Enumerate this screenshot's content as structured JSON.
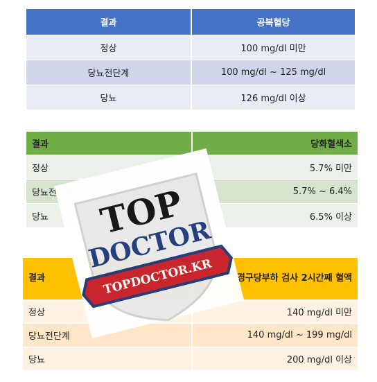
{
  "tables": [
    {
      "header": [
        "결과",
        "공복혈당"
      ],
      "rows": [
        [
          "정상",
          "100 mg/dl 미만"
        ],
        [
          "당뇨전단계",
          "100 mg/dl ~ 125 mg/dl"
        ],
        [
          "당뇨",
          "126 mg/dl 이상"
        ]
      ]
    },
    {
      "header": [
        "결과",
        "당화혈색소"
      ],
      "rows": [
        [
          "정상",
          "5.7% 미만"
        ],
        [
          "당뇨전단계",
          "5.7% ~ 6.4%"
        ],
        [
          "당뇨",
          "6.5% 이상"
        ]
      ]
    },
    {
      "header": [
        "결과",
        "경구당부하 검사 2시간째 혈액"
      ],
      "rows": [
        [
          "정상",
          "140 mg/dl 미만"
        ],
        [
          "당뇨전단계",
          "140 mg/dl ~ 199 mg/dl"
        ],
        [
          "당뇨",
          "200 mg/dl 이상"
        ]
      ]
    }
  ],
  "watermark": {
    "line1": "TOP",
    "line2": "DOCTOR",
    "ribbon": "TOPDOCTOR.KR"
  }
}
